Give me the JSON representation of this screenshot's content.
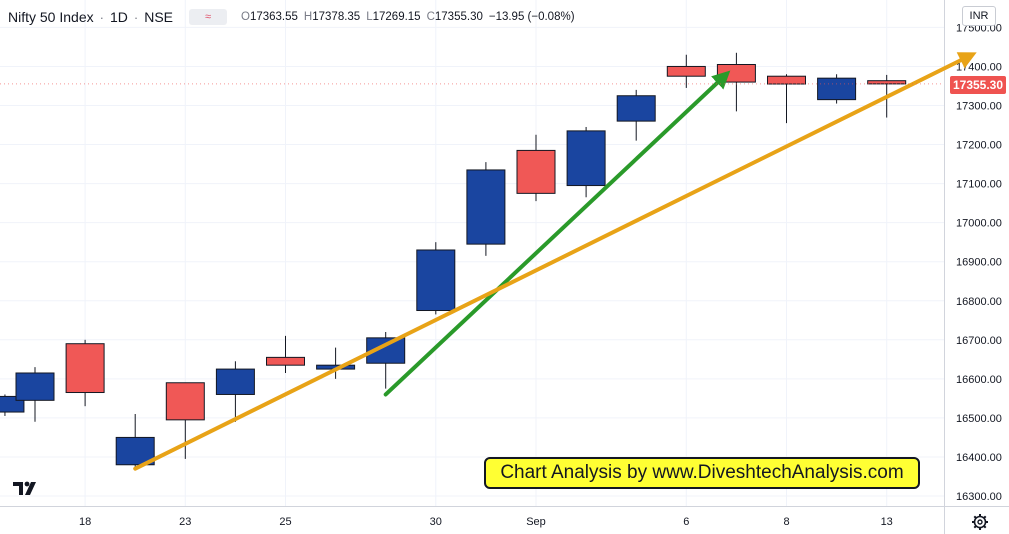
{
  "legend": {
    "symbol": "Nifty 50 Index",
    "interval": "1D",
    "exchange": "NSE",
    "indicator_glyph": "≈",
    "open_label": "O",
    "open": "17363.55",
    "high_label": "H",
    "high": "17378.35",
    "low_label": "L",
    "low": "17269.15",
    "close_label": "C",
    "close": "17355.30",
    "change": "−13.95 (−0.08%)"
  },
  "currency": "INR",
  "last_price": "17355.30",
  "watermark": "Chart Analysis by www.DiveshtechAnalysis.com",
  "colors": {
    "up": "#1a45a0",
    "down": "#f05856",
    "green_line": "#2a9a2a",
    "orange_line": "#e8a317",
    "last_badge": "#ef5350"
  },
  "icons": {
    "logo": "tradingview-logo-icon",
    "settings": "gear-icon"
  },
  "chart_data": {
    "type": "candlestick",
    "ylim": [
      16260,
      17560
    ],
    "y_ticks": [
      16300,
      16400,
      16500,
      16600,
      16700,
      16800,
      16900,
      17000,
      17100,
      17200,
      17300,
      17400,
      17500
    ],
    "x_tick_labels": [
      {
        "label": "18",
        "index": 1
      },
      {
        "label": "23",
        "index": 3
      },
      {
        "label": "25",
        "index": 5
      },
      {
        "label": "30",
        "index": 8
      },
      {
        "label": "Sep",
        "index": 10
      },
      {
        "label": "6",
        "index": 13
      },
      {
        "label": "8",
        "index": 15
      },
      {
        "label": "13",
        "index": 17
      }
    ],
    "candles": [
      {
        "index": -0.6,
        "open": 16515,
        "high": 16560,
        "low": 16505,
        "close": 16555
      },
      {
        "index": 0,
        "open": 16545,
        "high": 16630,
        "low": 16490,
        "close": 16615
      },
      {
        "index": 1,
        "open": 16690,
        "high": 16700,
        "low": 16530,
        "close": 16565
      },
      {
        "index": 2,
        "open": 16380,
        "high": 16510,
        "low": 16375,
        "close": 16450
      },
      {
        "index": 3,
        "open": 16590,
        "high": 16590,
        "low": 16395,
        "close": 16495
      },
      {
        "index": 4,
        "open": 16560,
        "high": 16645,
        "low": 16490,
        "close": 16625
      },
      {
        "index": 5,
        "open": 16655,
        "high": 16710,
        "low": 16615,
        "close": 16635
      },
      {
        "index": 6,
        "open": 16625,
        "high": 16680,
        "low": 16600,
        "close": 16635
      },
      {
        "index": 7,
        "open": 16640,
        "high": 16720,
        "low": 16575,
        "close": 16705
      },
      {
        "index": 8,
        "open": 16775,
        "high": 16950,
        "low": 16765,
        "close": 16930
      },
      {
        "index": 9,
        "open": 16945,
        "high": 17155,
        "low": 16915,
        "close": 17135
      },
      {
        "index": 10,
        "open": 17185,
        "high": 17225,
        "low": 17055,
        "close": 17075
      },
      {
        "index": 11,
        "open": 17095,
        "high": 17245,
        "low": 17065,
        "close": 17235
      },
      {
        "index": 12,
        "open": 17260,
        "high": 17340,
        "low": 17210,
        "close": 17325
      },
      {
        "index": 13,
        "open": 17400,
        "high": 17430,
        "low": 17345,
        "close": 17375
      },
      {
        "index": 14,
        "open": 17405,
        "high": 17435,
        "low": 17285,
        "close": 17360
      },
      {
        "index": 15,
        "open": 17375,
        "high": 17380,
        "low": 17255,
        "close": 17355
      },
      {
        "index": 16,
        "open": 17315,
        "high": 17380,
        "low": 17305,
        "close": 17370
      },
      {
        "index": 17,
        "open": 17363.55,
        "high": 17378.35,
        "low": 17269.15,
        "close": 17355.3
      }
    ],
    "trendlines": [
      {
        "name": "",
        "color": "#2a9a2a",
        "from": {
          "index": 7.0,
          "value": 16560
        },
        "to": {
          "index": 13.8,
          "value": 17380
        }
      },
      {
        "name": "",
        "color": "#e8a317",
        "from": {
          "index": 2.0,
          "value": 16370
        },
        "to": {
          "index": 18.7,
          "value": 17430
        }
      }
    ]
  }
}
